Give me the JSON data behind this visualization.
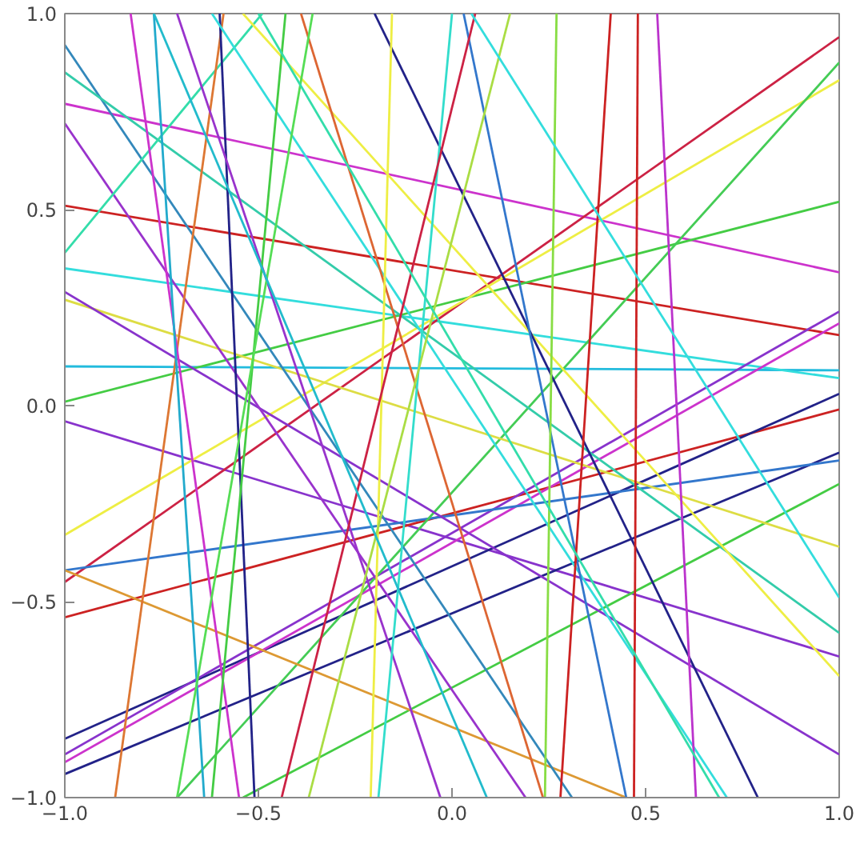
{
  "chart_data": {
    "type": "line",
    "xlim": [
      -1,
      1
    ],
    "ylim": [
      -1,
      1
    ],
    "xticks": [
      {
        "value": -1,
        "label": "−1.0"
      },
      {
        "value": -0.5,
        "label": "−0.5"
      },
      {
        "value": 0,
        "label": "0.0"
      },
      {
        "value": 0.5,
        "label": "0.5"
      },
      {
        "value": 1,
        "label": "1.0"
      }
    ],
    "yticks": [
      {
        "value": -1,
        "label": "−1.0"
      },
      {
        "value": -0.5,
        "label": "−0.5"
      },
      {
        "value": 0,
        "label": "0.0"
      },
      {
        "value": 0.5,
        "label": "0.5"
      },
      {
        "value": 1,
        "label": "1.0"
      }
    ],
    "grid": false,
    "marker": "none",
    "line_style": "solid",
    "series": [
      {
        "color": "#cc2222",
        "x": [
          -1,
          1
        ],
        "values": [
          0.51,
          0.18
        ]
      },
      {
        "color": "#cc33cc",
        "x": [
          -1,
          1
        ],
        "values": [
          0.77,
          0.34
        ]
      },
      {
        "color": "#22bbdd",
        "x": [
          -1,
          1
        ],
        "values": [
          0.1,
          0.09
        ]
      },
      {
        "color": "#33dddd",
        "x": [
          -1,
          1
        ],
        "values": [
          0.35,
          0.07
        ]
      },
      {
        "color": "#8833cc",
        "x": [
          -1,
          1
        ],
        "values": [
          -0.04,
          -0.64
        ]
      },
      {
        "color": "#cc2244",
        "x": [
          -1,
          1
        ],
        "values": [
          -0.45,
          0.94
        ]
      },
      {
        "color": "#cc2222",
        "x": [
          -1,
          1
        ],
        "values": [
          -0.54,
          -0.01
        ]
      },
      {
        "color": "#222288",
        "x": [
          -1,
          1
        ],
        "values": [
          -0.85,
          0.03
        ]
      },
      {
        "color": "#8833cc",
        "x": [
          -1,
          1
        ],
        "values": [
          -0.89,
          0.24
        ]
      },
      {
        "color": "#cc33cc",
        "x": [
          -1,
          1
        ],
        "values": [
          -0.91,
          0.21
        ]
      },
      {
        "color": "#222288",
        "x": [
          -1,
          1
        ],
        "values": [
          -0.94,
          -0.12
        ]
      },
      {
        "color": "#3377cc",
        "x": [
          -1,
          1
        ],
        "values": [
          -0.42,
          -0.14
        ]
      },
      {
        "color": "#44cc44",
        "x": [
          -1,
          1
        ],
        "values": [
          0.01,
          0.52
        ]
      },
      {
        "color": "#eeee44",
        "x": [
          -1,
          1
        ],
        "values": [
          -0.33,
          0.83
        ]
      },
      {
        "color": "#44cc55",
        "x": [
          1,
          -0.71
        ],
        "values": [
          0.875,
          -1
        ]
      },
      {
        "color": "#44cc44",
        "x": [
          1,
          -0.54
        ],
        "values": [
          -0.2,
          -1
        ]
      },
      {
        "color": "#dddd44",
        "x": [
          -1,
          1
        ],
        "values": [
          0.27,
          -0.36
        ]
      },
      {
        "color": "#dd9933",
        "x": [
          -1,
          0.45
        ],
        "values": [
          -0.42,
          -1
        ]
      },
      {
        "color": "#8833cc",
        "x": [
          -1,
          1
        ],
        "values": [
          0.29,
          -0.89
        ]
      },
      {
        "color": "#9933cc",
        "x": [
          -1,
          0.19
        ],
        "values": [
          0.72,
          -1
        ]
      },
      {
        "color": "#3388bb",
        "x": [
          -1,
          0.31
        ],
        "values": [
          0.92,
          -1
        ]
      },
      {
        "color": "#33ccaa",
        "x": [
          -1,
          1
        ],
        "values": [
          0.85,
          -0.58
        ]
      },
      {
        "color": "#33ddaa",
        "x": [
          -1,
          -0.49
        ],
        "values": [
          0.39,
          1
        ]
      },
      {
        "color": "#dd7733",
        "x": [
          -0.59,
          -0.87
        ],
        "values": [
          1,
          -1
        ]
      },
      {
        "color": "#cc33cc",
        "x": [
          -0.83,
          -0.55
        ],
        "values": [
          1,
          -1
        ]
      },
      {
        "color": "#22aacc",
        "x": [
          -0.77,
          -0.64
        ],
        "values": [
          1,
          -1
        ]
      },
      {
        "color": "#222288",
        "x": [
          -0.6,
          -0.51
        ],
        "values": [
          1,
          -1
        ]
      },
      {
        "color": "#9933cc",
        "x": [
          -0.71,
          -0.03
        ],
        "values": [
          1,
          -1
        ]
      },
      {
        "color": "#33dddd",
        "x": [
          -0.62,
          0.71
        ],
        "values": [
          1,
          -1
        ]
      },
      {
        "color": "#eeee44",
        "x": [
          -0.54,
          1
        ],
        "values": [
          1,
          -0.69
        ]
      },
      {
        "color": "#44cc44",
        "x": [
          -0.43,
          -0.62
        ],
        "values": [
          1,
          -1
        ]
      },
      {
        "color": "#dd6633",
        "x": [
          -0.39,
          0.235
        ],
        "values": [
          1,
          -1
        ]
      },
      {
        "color": "#55dd55",
        "x": [
          -0.36,
          -0.71
        ],
        "values": [
          1,
          -1
        ]
      },
      {
        "color": "#222288",
        "x": [
          -0.2,
          0.79
        ],
        "values": [
          1,
          -1
        ]
      },
      {
        "color": "#eeee44",
        "x": [
          -0.155,
          -0.21
        ],
        "values": [
          1,
          -1
        ]
      },
      {
        "color": "#33ddcc",
        "x": [
          0.0,
          -0.19
        ],
        "values": [
          1,
          -1
        ]
      },
      {
        "color": "#3377cc",
        "x": [
          0.03,
          0.45
        ],
        "values": [
          1,
          -1
        ]
      },
      {
        "color": "#cc2244",
        "x": [
          0.06,
          -0.44
        ],
        "values": [
          1,
          -1
        ]
      },
      {
        "color": "#aadd44",
        "x": [
          0.15,
          -0.37
        ],
        "values": [
          1,
          -1
        ]
      },
      {
        "color": "#88dd44",
        "x": [
          0.27,
          0.24
        ],
        "values": [
          1,
          -1
        ]
      },
      {
        "color": "#cc2222",
        "x": [
          0.41,
          0.28
        ],
        "values": [
          1,
          -1
        ]
      },
      {
        "color": "#cc2222",
        "x": [
          0.48,
          0.47
        ],
        "values": [
          1,
          -1
        ]
      },
      {
        "color": "#bb33cc",
        "x": [
          0.53,
          0.63
        ],
        "values": [
          1,
          -1
        ]
      },
      {
        "color": "#33dddd",
        "x": [
          0.05,
          1
        ],
        "values": [
          1,
          -0.49
        ]
      },
      {
        "color": "#33ddaa",
        "x": [
          -0.5,
          0.69
        ],
        "values": [
          1,
          -1
        ]
      },
      {
        "color": "#22bbcc",
        "x": [
          -0.77,
          0.09
        ],
        "values": [
          1,
          -1
        ]
      }
    ]
  }
}
